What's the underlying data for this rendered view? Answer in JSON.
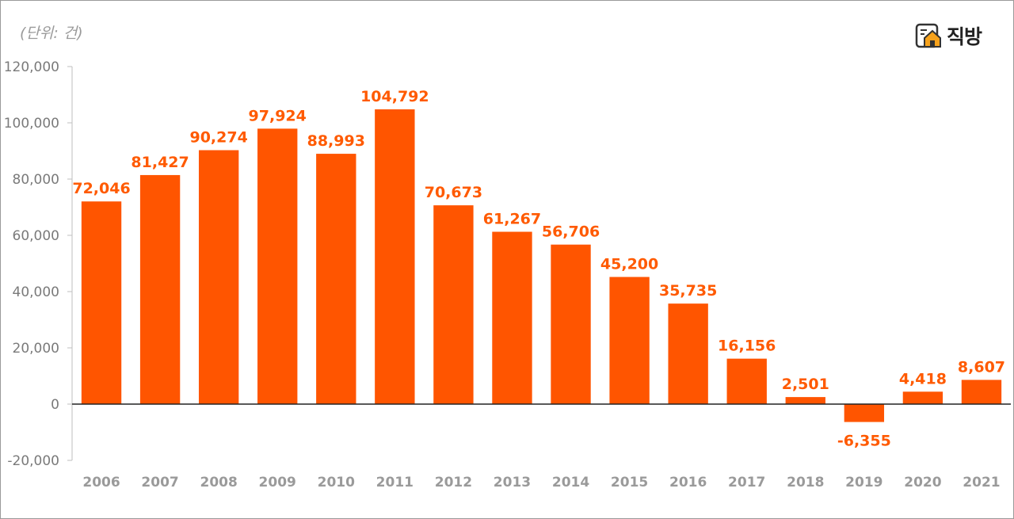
{
  "header": {
    "unit_label": "(단위: 건)",
    "brand_name": "직방",
    "brand_icon": "house-logo-icon"
  },
  "chart_data": {
    "type": "bar",
    "title": "",
    "xlabel": "",
    "ylabel": "",
    "categories": [
      "2006",
      "2007",
      "2008",
      "2009",
      "2010",
      "2011",
      "2012",
      "2013",
      "2014",
      "2015",
      "2016",
      "2017",
      "2018",
      "2019",
      "2020",
      "2021"
    ],
    "values": [
      72046,
      81427,
      90274,
      97924,
      88993,
      104792,
      70673,
      61267,
      56706,
      45200,
      35735,
      16156,
      2501,
      -6355,
      4418,
      8607
    ],
    "value_labels": [
      "72,046",
      "81,427",
      "90,274",
      "97,924",
      "88,993",
      "104,792",
      "70,673",
      "61,267",
      "56,706",
      "45,200",
      "35,735",
      "16,156",
      "2,501",
      "-6,355",
      "4,418",
      "8,607"
    ],
    "yticks": [
      120000,
      100000,
      80000,
      60000,
      40000,
      20000,
      0,
      -20000
    ],
    "ytick_labels": [
      "120,000",
      "100,000",
      "80,000",
      "60,000",
      "40,000",
      "20,000",
      "0",
      "-20,000"
    ],
    "ylim": [
      -20000,
      120000
    ],
    "grid": false,
    "bar_color": "#ff5500",
    "label_color": "#ff5a00"
  }
}
